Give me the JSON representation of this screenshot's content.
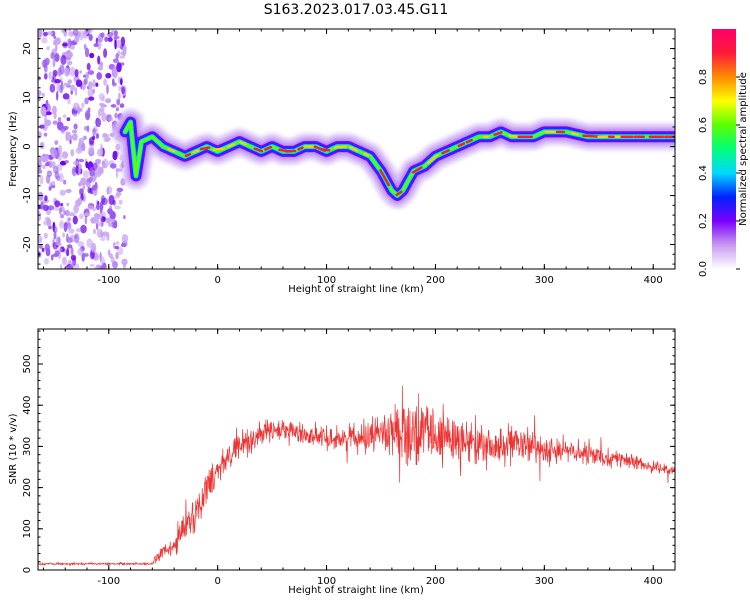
{
  "title": "S163.2023.017.03.45.G11",
  "chart_data": [
    {
      "type": "heatmap",
      "xlabel": "Height of straight line (km)",
      "ylabel": "Frequency (Hz)",
      "xlim": [
        -165,
        420
      ],
      "ylim": [
        -25,
        24
      ],
      "x_ticks": [
        -100,
        0,
        100,
        200,
        300,
        400
      ],
      "y_ticks": [
        -20,
        -10,
        0,
        10,
        20
      ],
      "noise_region_x": [
        -165,
        -85
      ],
      "ridge": {
        "x": [
          -85,
          -80,
          -75,
          -70,
          -60,
          -50,
          -40,
          -30,
          -20,
          -10,
          0,
          10,
          20,
          30,
          40,
          50,
          60,
          70,
          80,
          90,
          100,
          110,
          120,
          130,
          140,
          150,
          155,
          160,
          165,
          170,
          175,
          180,
          190,
          200,
          210,
          220,
          230,
          240,
          250,
          260,
          270,
          280,
          290,
          300,
          320,
          340,
          360,
          380,
          400,
          420
        ],
        "y": [
          3,
          5,
          -6,
          1,
          2,
          0,
          -1,
          -2,
          -1,
          0,
          -1,
          0,
          1,
          0,
          -1,
          0,
          -1,
          -1,
          0,
          0,
          -1,
          0,
          0,
          -1,
          -2,
          -5,
          -7,
          -9,
          -10,
          -9,
          -7,
          -5,
          -4,
          -2,
          -1,
          0,
          1,
          2,
          2,
          3,
          2,
          2,
          2,
          3,
          3,
          2,
          2,
          2,
          2,
          2
        ]
      },
      "colorbar": {
        "label": "Normalized spectral amplitude",
        "min": 0.0,
        "max": 1.0,
        "ticks": [
          "0.0",
          "0.2",
          "0.4",
          "0.6",
          "0.8"
        ],
        "colors": [
          "#ffffff",
          "#c89af0",
          "#7a00ff",
          "#0022ff",
          "#00d8ff",
          "#00ff7a",
          "#5aff00",
          "#ffff00",
          "#ff8a00",
          "#ff1a3c",
          "#ff0066"
        ]
      },
      "grid": false
    },
    {
      "type": "line",
      "xlabel": "Height of straight line (km)",
      "ylabel": "SNR (10 * v/v)",
      "xlim": [
        -165,
        420
      ],
      "ylim": [
        0,
        585
      ],
      "x_ticks": [
        -100,
        0,
        100,
        200,
        300,
        400
      ],
      "y_ticks": [
        0,
        100,
        200,
        300,
        400,
        500
      ],
      "color": "#ee3333",
      "envelope": {
        "x": [
          -165,
          -60,
          -55,
          -40,
          -30,
          -20,
          -10,
          0,
          20,
          40,
          60,
          80,
          100,
          120,
          140,
          160,
          180,
          200,
          220,
          240,
          260,
          280,
          300,
          320,
          340,
          360,
          380,
          400,
          420
        ],
        "mean": [
          15,
          15,
          35,
          55,
          110,
          140,
          200,
          250,
          300,
          330,
          340,
          330,
          320,
          320,
          330,
          340,
          330,
          320,
          320,
          300,
          300,
          300,
          295,
          290,
          280,
          275,
          262,
          250,
          240
        ],
        "amplitude": [
          4,
          4,
          25,
          40,
          60,
          60,
          60,
          60,
          50,
          45,
          40,
          40,
          40,
          45,
          55,
          80,
          120,
          110,
          95,
          80,
          70,
          65,
          55,
          45,
          40,
          30,
          25,
          20,
          18
        ]
      },
      "grid": false
    }
  ]
}
